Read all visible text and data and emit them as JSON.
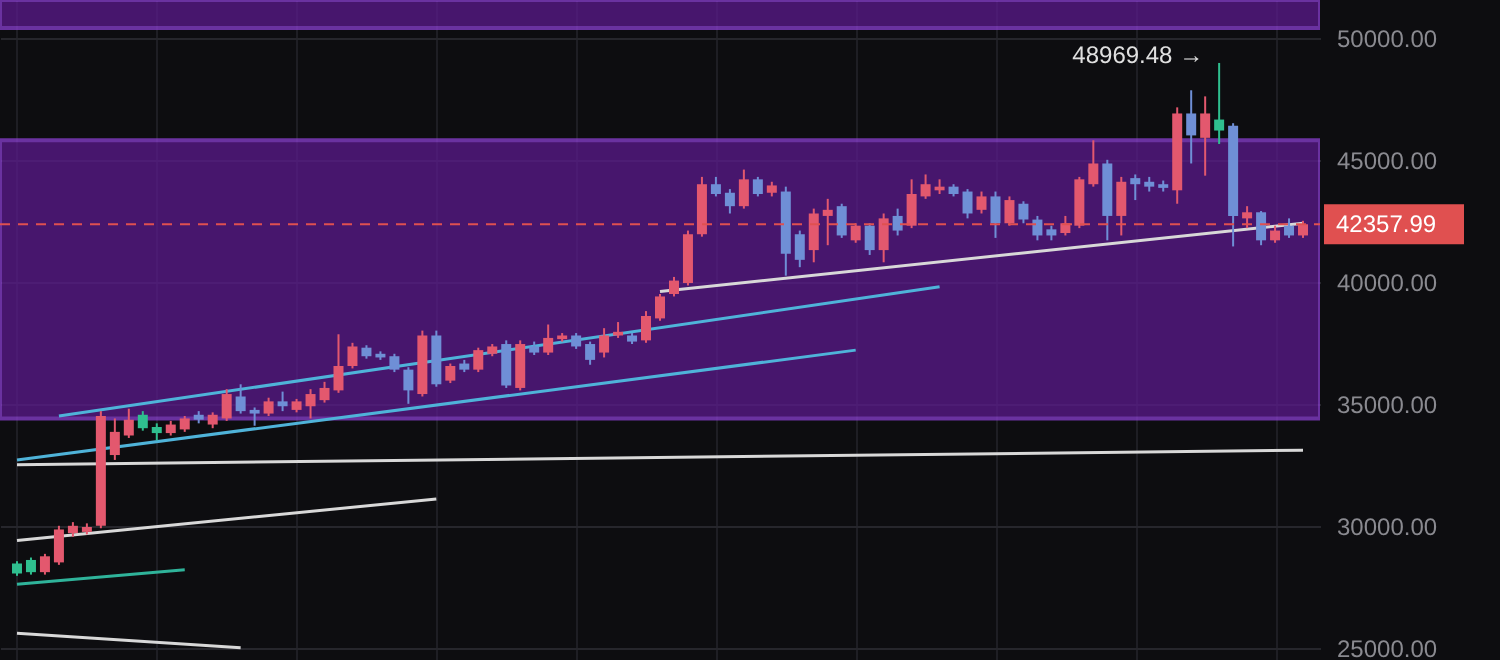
{
  "chart_data": {
    "type": "candlestick",
    "categories": [
      null,
      null,
      null,
      null,
      null,
      null,
      null,
      null,
      null,
      null,
      null,
      null,
      null,
      null,
      null,
      null,
      null,
      null,
      null,
      null,
      null,
      null,
      null,
      null,
      null,
      null,
      null,
      null,
      null,
      null,
      null,
      null,
      null,
      null,
      null,
      null,
      null,
      null,
      null,
      null,
      null,
      null,
      null,
      null,
      null,
      null,
      null,
      null,
      null,
      null,
      null,
      null,
      null,
      null,
      null,
      null,
      null,
      null,
      null,
      null,
      null,
      null,
      null,
      null,
      null,
      null,
      null,
      null,
      null,
      null,
      null,
      null,
      null,
      null,
      null,
      null,
      null,
      null,
      null,
      null,
      null,
      null,
      null,
      null,
      null,
      null,
      null,
      null,
      null,
      null,
      null,
      null,
      null
    ],
    "ohlc": [
      [
        28050,
        28550,
        27950,
        28450
      ],
      [
        28100,
        28700,
        28000,
        28600
      ],
      [
        28100,
        28850,
        28000,
        28750
      ],
      [
        28500,
        30000,
        28400,
        29850
      ],
      [
        29700,
        30150,
        29550,
        30000
      ],
      [
        29750,
        30100,
        29650,
        29950
      ],
      [
        30000,
        34700,
        29900,
        34500
      ],
      [
        32900,
        34400,
        32700,
        33850
      ],
      [
        33700,
        34800,
        33600,
        34350
      ],
      [
        34000,
        34700,
        33900,
        34550
      ],
      [
        34050,
        34200,
        33500,
        33800
      ],
      [
        33800,
        34300,
        33700,
        34150
      ],
      [
        33950,
        34500,
        33850,
        34400
      ],
      [
        34550,
        34700,
        34200,
        34350
      ],
      [
        34150,
        34650,
        34000,
        34550
      ],
      [
        34400,
        35600,
        34300,
        35400
      ],
      [
        35300,
        35800,
        34600,
        34700
      ],
      [
        34750,
        34850,
        34100,
        34600
      ],
      [
        34600,
        35250,
        34500,
        35100
      ],
      [
        35100,
        35500,
        34700,
        34900
      ],
      [
        34750,
        35200,
        34650,
        35100
      ],
      [
        34900,
        35600,
        34400,
        35400
      ],
      [
        35150,
        35900,
        35050,
        35650
      ],
      [
        35550,
        37850,
        35450,
        36550
      ],
      [
        36550,
        37500,
        36450,
        37350
      ],
      [
        37300,
        37400,
        36850,
        36950
      ],
      [
        37050,
        37150,
        36800,
        36900
      ],
      [
        36950,
        37050,
        36300,
        36400
      ],
      [
        36400,
        36500,
        35000,
        35550
      ],
      [
        35400,
        38000,
        35300,
        37800
      ],
      [
        37800,
        38000,
        35700,
        35800
      ],
      [
        35950,
        36650,
        35850,
        36550
      ],
      [
        36650,
        36800,
        36300,
        36400
      ],
      [
        36400,
        37300,
        36300,
        37200
      ],
      [
        37050,
        37450,
        36950,
        37350
      ],
      [
        37450,
        37600,
        35650,
        35750
      ],
      [
        35650,
        37600,
        35550,
        37450
      ],
      [
        37350,
        37550,
        37000,
        37100
      ],
      [
        37100,
        38250,
        37000,
        37700
      ],
      [
        37650,
        37900,
        37550,
        37800
      ],
      [
        37800,
        37900,
        37250,
        37350
      ],
      [
        37450,
        37550,
        36600,
        36800
      ],
      [
        37100,
        38100,
        36900,
        37800
      ],
      [
        37800,
        38350,
        37700,
        37950
      ],
      [
        37800,
        37900,
        37450,
        37550
      ],
      [
        37600,
        38800,
        37500,
        38600
      ],
      [
        38500,
        39500,
        38400,
        39400
      ],
      [
        39500,
        40200,
        39400,
        40050
      ],
      [
        39950,
        42100,
        39850,
        41950
      ],
      [
        41950,
        44300,
        41850,
        44000
      ],
      [
        44000,
        44300,
        43500,
        43600
      ],
      [
        43650,
        43800,
        42800,
        43100
      ],
      [
        43100,
        44600,
        43000,
        44200
      ],
      [
        44200,
        44300,
        43500,
        43600
      ],
      [
        43650,
        44100,
        43500,
        43950
      ],
      [
        43700,
        43900,
        40250,
        41150
      ],
      [
        41950,
        42100,
        40600,
        40900
      ],
      [
        41300,
        43000,
        40800,
        42800
      ],
      [
        42700,
        43400,
        41500,
        42950
      ],
      [
        43100,
        43200,
        41800,
        41900
      ],
      [
        41700,
        42400,
        41600,
        42300
      ],
      [
        42300,
        42400,
        41100,
        41300
      ],
      [
        41300,
        42800,
        40800,
        42600
      ],
      [
        42700,
        43000,
        41900,
        42100
      ],
      [
        42300,
        44200,
        42200,
        43600
      ],
      [
        43500,
        44400,
        43400,
        44000
      ],
      [
        43750,
        44200,
        43600,
        43900
      ],
      [
        43900,
        44000,
        43500,
        43600
      ],
      [
        43700,
        43800,
        42600,
        42800
      ],
      [
        42950,
        43700,
        42800,
        43500
      ],
      [
        43500,
        43700,
        41800,
        42400
      ],
      [
        42400,
        43500,
        42300,
        43350
      ],
      [
        43200,
        43300,
        42400,
        42550
      ],
      [
        42550,
        42700,
        41700,
        41900
      ],
      [
        42150,
        42300,
        41700,
        41900
      ],
      [
        42000,
        42700,
        41900,
        42400
      ],
      [
        42300,
        44300,
        42200,
        44200
      ],
      [
        44000,
        45800,
        43900,
        44850
      ],
      [
        44850,
        45000,
        41700,
        42700
      ],
      [
        42700,
        44300,
        41900,
        44100
      ],
      [
        44250,
        44400,
        43350,
        44000
      ],
      [
        44100,
        44300,
        43700,
        43900
      ],
      [
        44000,
        44150,
        43700,
        43850
      ],
      [
        43750,
        47150,
        43200,
        46900
      ],
      [
        46900,
        47850,
        44850,
        46000
      ],
      [
        45900,
        47600,
        44350,
        46900
      ],
      [
        46200,
        48969.48,
        45650,
        46650
      ],
      [
        46400,
        46500,
        41450,
        42700
      ],
      [
        42600,
        43100,
        42200,
        42850
      ],
      [
        42850,
        42900,
        41500,
        41700
      ],
      [
        41700,
        42300,
        41600,
        42100
      ],
      [
        42300,
        42600,
        41800,
        41900
      ],
      [
        41900,
        42500,
        41800,
        42357.99
      ]
    ],
    "colors": [
      "#2fbf8f",
      "#2fbf8f",
      "#e3586e",
      "#e3586e",
      "#e3586e",
      "#e3586e",
      "#e3586e",
      "#e3586e",
      "#e3586e",
      "#2fbf8f",
      "#2fbf8f",
      "#e3586e",
      "#e3586e",
      "#6f8fd6",
      "#e3586e",
      "#e3586e",
      "#6f8fd6",
      "#6f8fd6",
      "#e3586e",
      "#6f8fd6",
      "#e3586e",
      "#e3586e",
      "#e3586e",
      "#e3586e",
      "#e3586e",
      "#6f8fd6",
      "#6f8fd6",
      "#6f8fd6",
      "#6f8fd6",
      "#e3586e",
      "#6f8fd6",
      "#e3586e",
      "#6f8fd6",
      "#e3586e",
      "#e3586e",
      "#6f8fd6",
      "#e3586e",
      "#6f8fd6",
      "#e3586e",
      "#e3586e",
      "#6f8fd6",
      "#6f8fd6",
      "#e3586e",
      "#e3586e",
      "#6f8fd6",
      "#e3586e",
      "#e3586e",
      "#e3586e",
      "#e3586e",
      "#e3586e",
      "#6f8fd6",
      "#6f8fd6",
      "#e3586e",
      "#6f8fd6",
      "#e3586e",
      "#6f8fd6",
      "#6f8fd6",
      "#e3586e",
      "#e3586e",
      "#6f8fd6",
      "#e3586e",
      "#6f8fd6",
      "#e3586e",
      "#6f8fd6",
      "#e3586e",
      "#e3586e",
      "#e3586e",
      "#6f8fd6",
      "#6f8fd6",
      "#e3586e",
      "#6f8fd6",
      "#e3586e",
      "#6f8fd6",
      "#6f8fd6",
      "#6f8fd6",
      "#e3586e",
      "#e3586e",
      "#e3586e",
      "#6f8fd6",
      "#e3586e",
      "#6f8fd6",
      "#6f8fd6",
      "#6f8fd6",
      "#e3586e",
      "#6f8fd6",
      "#e3586e",
      "#2fbf8f",
      "#6f8fd6",
      "#e3586e",
      "#6f8fd6",
      "#e3586e",
      "#6f8fd6",
      "#e3586e"
    ],
    "series": [
      {
        "type": "line",
        "color": "#d8d8d8",
        "values": [
          32500,
          null,
          null,
          null,
          null,
          null,
          null,
          null,
          null,
          null,
          null,
          null,
          null,
          null,
          null,
          null,
          null,
          null,
          null,
          null,
          null,
          null,
          null,
          null,
          null,
          null,
          null,
          null,
          null,
          null,
          null,
          null,
          null,
          null,
          null,
          null,
          null,
          null,
          null,
          null,
          null,
          null,
          null,
          null,
          null,
          null,
          null,
          null,
          null,
          null,
          null,
          null,
          null,
          null,
          null,
          null,
          null,
          null,
          null,
          null,
          null,
          null,
          null,
          null,
          null,
          null,
          null,
          null,
          null,
          null,
          null,
          null,
          null,
          null,
          null,
          null,
          null,
          null,
          null,
          null,
          null,
          null,
          null,
          null,
          null,
          null,
          null,
          null,
          null,
          null,
          null,
          null,
          33100
        ]
      },
      {
        "type": "line",
        "color": "#d8d8d8",
        "values": [
          29400,
          null,
          null,
          null,
          null,
          null,
          null,
          null,
          null,
          null,
          null,
          null,
          null,
          null,
          null,
          null,
          null,
          null,
          null,
          null,
          null,
          null,
          null,
          null,
          null,
          null,
          null,
          null,
          null,
          null,
          31100,
          null,
          null,
          null,
          null,
          null,
          null,
          null,
          null,
          null,
          null,
          null,
          null,
          null,
          null,
          null,
          null,
          null,
          null,
          null,
          null,
          null,
          null,
          null,
          null,
          null,
          null,
          null,
          null,
          null,
          null,
          null,
          null,
          null,
          null,
          null,
          null,
          null,
          null,
          null,
          null,
          null,
          null,
          null,
          null,
          null,
          null,
          null,
          null,
          null,
          null,
          null,
          null,
          null,
          null,
          null,
          null,
          null,
          null,
          null,
          null,
          null,
          null
        ]
      },
      {
        "type": "line",
        "color": "#d8d8d8",
        "values": [
          25600,
          null,
          null,
          null,
          null,
          null,
          null,
          null,
          null,
          null,
          null,
          null,
          null,
          null,
          null,
          null,
          25000,
          null,
          null,
          null,
          null,
          null,
          null,
          null,
          null,
          null,
          null,
          null,
          null,
          null,
          null,
          null,
          null,
          null,
          null,
          null,
          null,
          null,
          null,
          null,
          null,
          null,
          null,
          null,
          null,
          null,
          null,
          null,
          null,
          null,
          null,
          null,
          null,
          null,
          null,
          null,
          null,
          null,
          null,
          null,
          null,
          null,
          null,
          null,
          null,
          null,
          null,
          null,
          null,
          null,
          null,
          null,
          null,
          null,
          null,
          null,
          null,
          null,
          null,
          null,
          null,
          null,
          null,
          null,
          null,
          null,
          null,
          null,
          null,
          null,
          null,
          null,
          null
        ]
      },
      {
        "type": "line",
        "color": "#d8d8d8",
        "values": [
          null,
          null,
          null,
          null,
          null,
          null,
          null,
          null,
          null,
          null,
          null,
          null,
          null,
          null,
          null,
          null,
          null,
          null,
          null,
          null,
          null,
          null,
          null,
          null,
          null,
          null,
          null,
          null,
          null,
          null,
          null,
          null,
          null,
          null,
          null,
          null,
          null,
          null,
          null,
          null,
          null,
          null,
          null,
          null,
          null,
          null,
          39600,
          null,
          null,
          null,
          null,
          null,
          null,
          null,
          null,
          null,
          null,
          null,
          null,
          null,
          null,
          null,
          null,
          null,
          null,
          null,
          null,
          null,
          null,
          null,
          null,
          null,
          null,
          null,
          null,
          null,
          null,
          null,
          null,
          null,
          null,
          null,
          null,
          null,
          null,
          null,
          null,
          null,
          null,
          null,
          null,
          null,
          42400
        ]
      },
      {
        "type": "line",
        "color": "#4fb3d9",
        "values": [
          null,
          null,
          null,
          34500,
          null,
          null,
          null,
          null,
          null,
          null,
          null,
          null,
          null,
          null,
          null,
          null,
          null,
          null,
          null,
          null,
          null,
          null,
          null,
          null,
          null,
          null,
          null,
          null,
          null,
          null,
          null,
          null,
          null,
          null,
          null,
          null,
          null,
          null,
          null,
          null,
          null,
          null,
          null,
          null,
          null,
          null,
          null,
          null,
          null,
          null,
          null,
          null,
          null,
          null,
          null,
          null,
          null,
          null,
          null,
          null,
          null,
          null,
          null,
          null,
          null,
          null,
          39800,
          null,
          null,
          null,
          null,
          null,
          null,
          null,
          null,
          null,
          null,
          null,
          null,
          null,
          null,
          null,
          null,
          null,
          null,
          null,
          null,
          null,
          null,
          null,
          null,
          null,
          null
        ]
      },
      {
        "type": "line",
        "color": "#4fb3d9",
        "values": [
          32700,
          null,
          null,
          null,
          null,
          null,
          null,
          null,
          null,
          null,
          null,
          null,
          null,
          null,
          null,
          null,
          null,
          null,
          null,
          null,
          null,
          null,
          null,
          null,
          null,
          null,
          null,
          null,
          null,
          null,
          null,
          null,
          null,
          null,
          null,
          null,
          null,
          null,
          null,
          null,
          null,
          null,
          null,
          null,
          null,
          null,
          null,
          null,
          null,
          null,
          null,
          null,
          null,
          null,
          null,
          null,
          null,
          null,
          null,
          null,
          37200,
          null,
          null,
          null,
          null,
          null,
          null,
          null,
          null,
          null,
          null,
          null,
          null,
          null,
          null,
          null,
          null,
          null,
          null,
          null,
          null,
          null,
          null,
          null,
          null,
          null,
          null,
          null,
          null,
          null,
          null,
          null,
          null
        ]
      },
      {
        "type": "line",
        "color": "#2fb39a",
        "values": [
          27600,
          null,
          null,
          null,
          null,
          null,
          null,
          null,
          null,
          null,
          null,
          null,
          28200,
          null,
          null,
          null,
          null,
          null,
          null,
          null,
          null,
          null,
          null,
          null,
          null,
          null,
          null,
          null,
          null,
          null,
          null,
          null,
          null,
          null,
          null,
          null,
          null,
          null,
          null,
          null,
          null,
          null,
          null,
          null,
          null,
          null,
          null,
          null,
          null,
          null,
          null,
          null,
          null,
          null,
          null,
          null,
          null,
          null,
          null,
          null,
          null,
          null,
          null,
          null,
          null,
          null,
          null,
          null,
          null,
          null,
          null,
          null,
          null,
          null,
          null,
          null,
          null,
          null,
          null,
          null,
          null,
          null,
          null,
          null,
          null,
          null,
          null,
          null,
          null,
          null,
          null,
          null,
          null
        ]
      }
    ],
    "bands": [
      {
        "axis": "y",
        "from": 34400,
        "to": 45800,
        "color": "#5b1a8c"
      },
      {
        "axis": "y",
        "from": 50400,
        "to": 51550,
        "color": "#5b1a8c"
      }
    ],
    "ref_lines": [
      {
        "axis": "y",
        "value": 42357.99,
        "label": "42357.99",
        "color": "#e05050",
        "line_style": "dashed"
      }
    ],
    "annotations": [
      "48969.48 →"
    ],
    "ylim": [
      24500,
      51550
    ],
    "yticks": [
      {
        "value": 25000,
        "label": "25000.00"
      },
      {
        "value": 30000,
        "label": "30000.00"
      },
      {
        "value": 35000,
        "label": "35000.00"
      },
      {
        "value": 40000,
        "label": "40000.00"
      },
      {
        "value": 45000,
        "label": "45000.00"
      },
      {
        "value": 50000,
        "label": "50000.00"
      }
    ],
    "tick_labels": "y",
    "grid": true
  }
}
